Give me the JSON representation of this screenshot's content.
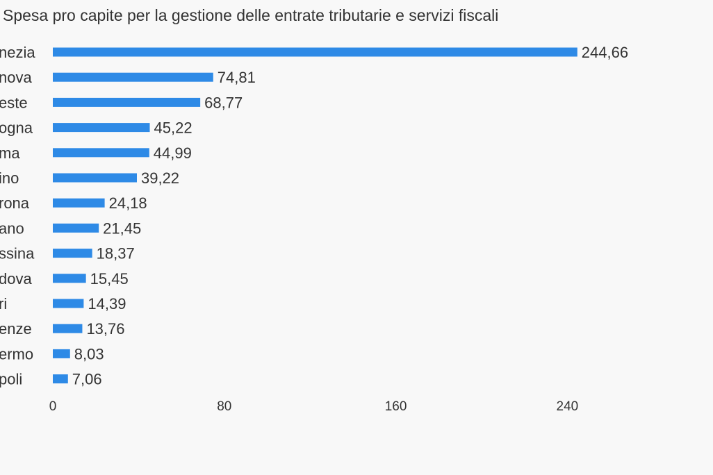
{
  "chart_data": {
    "type": "bar",
    "orientation": "horizontal",
    "title": "Spesa pro capite per la gestione delle entrate tributarie e servizi fiscali",
    "xlabel": "",
    "ylabel": "",
    "categories": [
      "nezia",
      "nova",
      "este",
      "ogna",
      "ma",
      "ino",
      "rona",
      "ano",
      "ssina",
      "dova",
      "ri",
      "enze",
      "ermo",
      "poli"
    ],
    "values": [
      244.66,
      74.81,
      68.77,
      45.22,
      44.99,
      39.22,
      24.18,
      21.45,
      18.37,
      15.45,
      14.39,
      13.76,
      8.03,
      7.06
    ],
    "value_labels": [
      "244,66",
      "74,81",
      "68,77",
      "45,22",
      "44,99",
      "39,22",
      "24,18",
      "21,45",
      "18,37",
      "15,45",
      "14,39",
      "13,76",
      "8,03",
      "7,06"
    ],
    "xlim": [
      0,
      300
    ],
    "xticks": [
      0,
      80,
      160,
      240
    ],
    "xtick_labels": [
      "0",
      "80",
      "160",
      "240"
    ],
    "grid": false,
    "legend": "none",
    "bar_color": "#2e8ae6",
    "label_color": "#333333",
    "tick_color": "#333333"
  }
}
